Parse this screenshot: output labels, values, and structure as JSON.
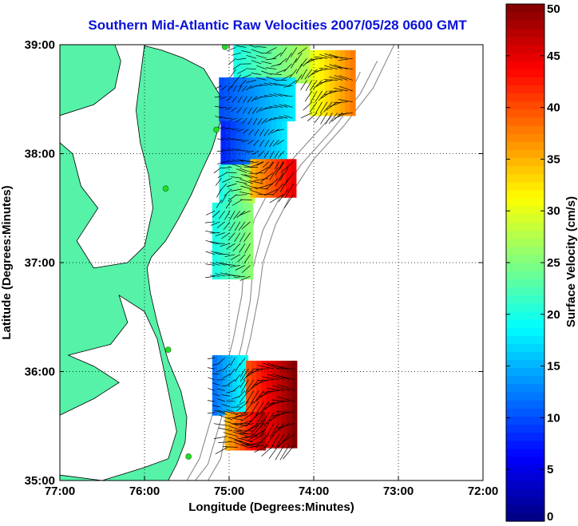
{
  "title": "Southern Mid-Atlantic Raw Velocities 2007/05/28 0600 GMT",
  "chart_data": {
    "type": "heatmap",
    "title": "Southern Mid-Atlantic Raw Velocities 2007/05/28 0600 GMT",
    "xlabel": "Longitude (Degrees:Minutes)",
    "ylabel": "Latitude (Degrees:Minutes)",
    "colorbar_label": "Surface Velocity (cm/s)",
    "xlim": [
      -77,
      -72
    ],
    "ylim": [
      35,
      39
    ],
    "x_ticks": [
      {
        "value": -77,
        "label": "77:00"
      },
      {
        "value": -76,
        "label": "76:00"
      },
      {
        "value": -75,
        "label": "75:00"
      },
      {
        "value": -74,
        "label": "74:00"
      },
      {
        "value": -73,
        "label": "73:00"
      },
      {
        "value": -72,
        "label": "72:00"
      }
    ],
    "y_ticks": [
      {
        "value": 35,
        "label": "35:00"
      },
      {
        "value": 36,
        "label": "36:00"
      },
      {
        "value": 37,
        "label": "37:00"
      },
      {
        "value": 38,
        "label": "38:00"
      },
      {
        "value": 39,
        "label": "39:00"
      }
    ],
    "colorbar": {
      "range": [
        0,
        50
      ],
      "ticks": [
        {
          "value": 0,
          "label": "0"
        },
        {
          "value": 5,
          "label": "5"
        },
        {
          "value": 10,
          "label": "10"
        },
        {
          "value": 15,
          "label": "15"
        },
        {
          "value": 20,
          "label": "20"
        },
        {
          "value": 25,
          "label": "25"
        },
        {
          "value": 30,
          "label": "30"
        },
        {
          "value": 35,
          "label": "35"
        },
        {
          "value": 40,
          "label": "40"
        },
        {
          "value": 45,
          "label": "45"
        },
        {
          "value": 50,
          "label": "50"
        }
      ]
    },
    "grid": true,
    "colors": {
      "land": "#55f2a8",
      "title": "#0a12d8",
      "bathymetry": "#8a8a8a",
      "vectors": "#000000",
      "stations": "#22dd22"
    },
    "coastline": [
      [
        -76.05,
        39.0
      ],
      [
        -75.8,
        38.95
      ],
      [
        -75.55,
        38.88
      ],
      [
        -75.3,
        38.78
      ],
      [
        -75.12,
        38.55
      ],
      [
        -75.1,
        38.3
      ],
      [
        -75.2,
        38.05
      ],
      [
        -75.32,
        37.85
      ],
      [
        -75.45,
        37.62
      ],
      [
        -75.6,
        37.4
      ],
      [
        -75.75,
        37.2
      ],
      [
        -75.92,
        37.05
      ],
      [
        -75.97,
        36.95
      ],
      [
        -75.93,
        36.72
      ],
      [
        -75.85,
        36.45
      ],
      [
        -75.72,
        36.1
      ],
      [
        -75.57,
        35.82
      ],
      [
        -75.5,
        35.58
      ],
      [
        -75.52,
        35.35
      ],
      [
        -75.62,
        35.15
      ],
      [
        -75.72,
        35.0
      ]
    ],
    "bay": [
      [
        -77.0,
        38.35
      ],
      [
        -76.6,
        38.45
      ],
      [
        -76.35,
        38.6
      ],
      [
        -76.28,
        38.85
      ],
      [
        -76.35,
        39.0
      ],
      [
        -76.0,
        39.0
      ],
      [
        -76.05,
        38.7
      ],
      [
        -76.1,
        38.4
      ],
      [
        -76.05,
        38.1
      ],
      [
        -75.95,
        37.8
      ],
      [
        -75.9,
        37.5
      ],
      [
        -76.0,
        37.15
      ],
      [
        -76.2,
        37.0
      ],
      [
        -76.6,
        36.95
      ],
      [
        -76.8,
        37.2
      ],
      [
        -76.55,
        37.5
      ],
      [
        -76.75,
        37.7
      ],
      [
        -76.85,
        38.0
      ],
      [
        -77.0,
        38.1
      ]
    ],
    "sounds": [
      [
        -76.3,
        36.7
      ],
      [
        -76.0,
        36.55
      ],
      [
        -75.85,
        36.3
      ],
      [
        -75.78,
        36.05
      ],
      [
        -75.7,
        35.75
      ],
      [
        -75.62,
        35.45
      ],
      [
        -75.72,
        35.2
      ],
      [
        -76.0,
        35.12
      ],
      [
        -76.5,
        35.0
      ],
      [
        -77.0,
        35.05
      ],
      [
        -77.0,
        35.6
      ],
      [
        -76.6,
        35.75
      ],
      [
        -76.3,
        35.9
      ],
      [
        -76.6,
        36.05
      ],
      [
        -76.9,
        36.15
      ],
      [
        -76.4,
        36.25
      ],
      [
        -76.2,
        36.45
      ]
    ],
    "isobaths": [
      [
        [
          -73.45,
          38.75
        ],
        [
          -73.6,
          38.5
        ],
        [
          -73.9,
          38.25
        ],
        [
          -74.25,
          37.95
        ],
        [
          -74.5,
          37.7
        ],
        [
          -74.7,
          37.4
        ],
        [
          -74.82,
          37.05
        ],
        [
          -74.85,
          36.7
        ],
        [
          -74.95,
          36.3
        ],
        [
          -75.05,
          36.0
        ],
        [
          -75.2,
          35.6
        ],
        [
          -75.35,
          35.2
        ],
        [
          -75.5,
          35.0
        ]
      ],
      [
        [
          -73.25,
          38.85
        ],
        [
          -73.45,
          38.55
        ],
        [
          -73.8,
          38.2
        ],
        [
          -74.15,
          37.9
        ],
        [
          -74.4,
          37.6
        ],
        [
          -74.6,
          37.3
        ],
        [
          -74.72,
          36.95
        ],
        [
          -74.75,
          36.65
        ],
        [
          -74.85,
          36.25
        ],
        [
          -74.95,
          35.95
        ],
        [
          -75.1,
          35.55
        ],
        [
          -75.25,
          35.15
        ],
        [
          -75.4,
          35.0
        ]
      ],
      [
        [
          -73.05,
          39.0
        ],
        [
          -73.3,
          38.6
        ],
        [
          -73.65,
          38.25
        ],
        [
          -74.0,
          37.95
        ],
        [
          -74.25,
          37.65
        ],
        [
          -74.45,
          37.35
        ],
        [
          -74.6,
          37.0
        ],
        [
          -74.65,
          36.7
        ],
        [
          -74.75,
          36.3
        ],
        [
          -74.85,
          36.0
        ],
        [
          -75.0,
          35.6
        ],
        [
          -75.1,
          35.2
        ],
        [
          -75.25,
          35.0
        ]
      ]
    ],
    "stations": [
      [
        -75.05,
        38.98
      ],
      [
        -75.15,
        38.22
      ],
      [
        -75.75,
        37.68
      ],
      [
        -75.72,
        36.2
      ],
      [
        -75.48,
        35.22
      ]
    ],
    "grid_cell_deg": [
      0.06,
      0.05
    ],
    "velocity_regions": [
      {
        "lon_range": [
          -74.95,
          -74.05
        ],
        "lat_range": [
          38.65,
          38.98
        ],
        "speed_lon0": 20,
        "speed_lon1": 28
      },
      {
        "lon_range": [
          -74.05,
          -73.55
        ],
        "lat_range": [
          38.35,
          38.95
        ],
        "speed_lon0": 30,
        "speed_lon1": 38
      },
      {
        "lon_range": [
          -75.12,
          -74.25
        ],
        "lat_range": [
          38.3,
          38.68
        ],
        "speed_lon0": 10,
        "speed_lon1": 18
      },
      {
        "lon_range": [
          -75.1,
          -74.35
        ],
        "lat_range": [
          37.9,
          38.3
        ],
        "speed_lon0": 8,
        "speed_lon1": 18
      },
      {
        "lon_range": [
          -75.12,
          -74.75
        ],
        "lat_range": [
          37.55,
          37.9
        ],
        "speed_lon0": 20,
        "speed_lon1": 28
      },
      {
        "lon_range": [
          -74.75,
          -74.25
        ],
        "lat_range": [
          37.6,
          37.95
        ],
        "speed_lon0": 35,
        "speed_lon1": 45
      },
      {
        "lon_range": [
          -75.2,
          -74.75
        ],
        "lat_range": [
          36.85,
          37.55
        ],
        "speed_lon0": 20,
        "speed_lon1": 26
      },
      {
        "lon_range": [
          -75.2,
          -74.8
        ],
        "lat_range": [
          35.6,
          36.15
        ],
        "speed_lon0": 12,
        "speed_lon1": 20
      },
      {
        "lon_range": [
          -74.8,
          -74.25
        ],
        "lat_range": [
          35.3,
          36.1
        ],
        "speed_lon0": 40,
        "speed_lon1": 50
      },
      {
        "lon_range": [
          -75.05,
          -74.6
        ],
        "lat_range": [
          35.28,
          35.6
        ],
        "speed_lon0": 35,
        "speed_lon1": 48
      }
    ]
  }
}
